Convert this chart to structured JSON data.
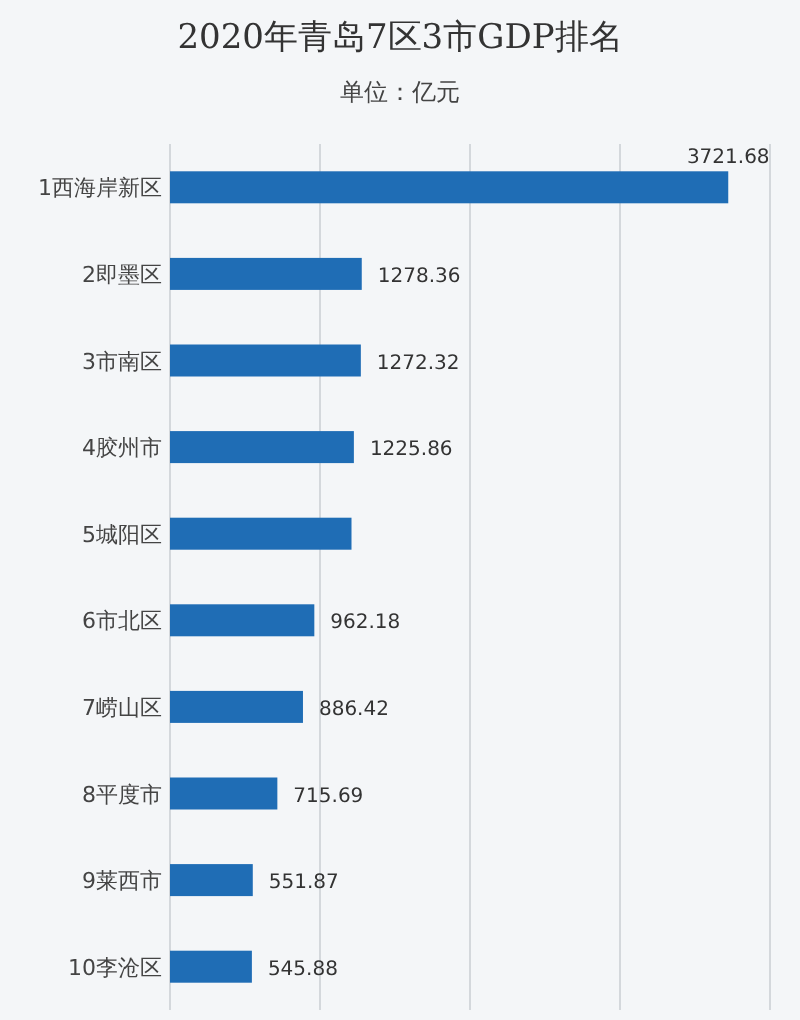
{
  "chart_data": {
    "type": "bar",
    "orientation": "horizontal",
    "title": "2020年青岛7区3市GDP排名",
    "subtitle": "单位：亿元",
    "categories": [
      "1西海岸新区",
      "2即墨区",
      "3市南区",
      "4胶州市",
      "5城阳区",
      "6市北区",
      "7崂山区",
      "8平度市",
      "9莱西市",
      "10李沧区"
    ],
    "values": [
      3721.68,
      1278.36,
      1272.32,
      1225.86,
      1210,
      962.18,
      886.42,
      715.69,
      551.87,
      545.88
    ],
    "value_labels": [
      "3721.68",
      "1278.36",
      "1272.32",
      "1225.86",
      null,
      "962.18",
      "886.42",
      "715.69",
      "551.87",
      "545.88"
    ],
    "color": "#1f6db5",
    "xlim": [
      0,
      4000
    ],
    "xticks": [
      {
        "value": 0,
        "label": null
      },
      {
        "value": 1000,
        "label": null
      },
      {
        "value": 2000,
        "label": null
      },
      {
        "value": 3000,
        "label": null
      },
      {
        "value": 4000,
        "label": null
      }
    ],
    "grid": "x",
    "tick_labels": "y"
  }
}
